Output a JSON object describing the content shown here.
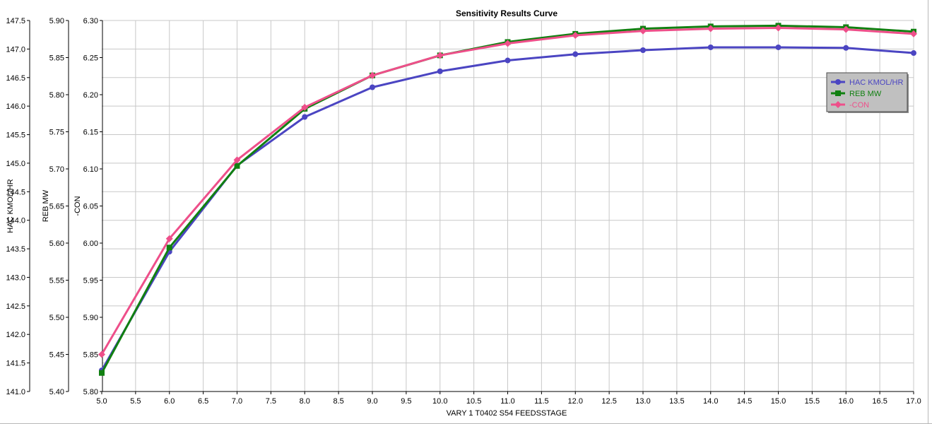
{
  "chart_data": {
    "type": "line",
    "title": "Sensitivity Results Curve",
    "xlabel": "VARY   1 T0402 S54 FEEDSSTAGE",
    "x": [
      5,
      6,
      7,
      8,
      9,
      10,
      11,
      12,
      13,
      14,
      15,
      16,
      17
    ],
    "xlim": [
      5.0,
      17.0
    ],
    "xticks": [
      "5.0",
      "5.5",
      "6.0",
      "6.5",
      "7.0",
      "7.5",
      "8.0",
      "8.5",
      "9.0",
      "9.5",
      "10.0",
      "10.5",
      "11.0",
      "11.5",
      "12.0",
      "12.5",
      "13.0",
      "13.5",
      "14.0",
      "14.5",
      "15.0",
      "15.5",
      "16.0",
      "16.5",
      "17.0"
    ],
    "grid": true,
    "legend": "right",
    "y_axes": [
      {
        "label": "HAC KMOL/HR",
        "range": [
          141.0,
          147.5
        ],
        "ticks": [
          "141.0",
          "141.5",
          "142.0",
          "142.5",
          "143.0",
          "143.5",
          "144.0",
          "144.5",
          "145.0",
          "145.5",
          "146.0",
          "146.5",
          "147.0",
          "147.5"
        ]
      },
      {
        "label": "REB MW",
        "range": [
          5.4,
          5.9
        ],
        "ticks": [
          "5.40",
          "5.45",
          "5.50",
          "5.55",
          "5.60",
          "5.65",
          "5.70",
          "5.75",
          "5.80",
          "5.85",
          "5.90"
        ]
      },
      {
        "label": "-CON",
        "range": [
          5.8,
          6.3
        ],
        "ticks": [
          "5.80",
          "5.85",
          "5.90",
          "5.95",
          "6.00",
          "6.05",
          "6.10",
          "6.15",
          "6.20",
          "6.25",
          "6.30"
        ]
      }
    ],
    "series": [
      {
        "name": "HAC KMOL/HR",
        "axis": 0,
        "color": "#4b45c2",
        "marker": "circle",
        "values": [
          141.37,
          143.45,
          144.96,
          145.81,
          146.33,
          146.61,
          146.8,
          146.91,
          146.98,
          147.03,
          147.03,
          147.02,
          146.93
        ]
      },
      {
        "name": "REB MW",
        "axis": 1,
        "color": "#118011",
        "marker": "square",
        "values": [
          5.425,
          5.594,
          5.704,
          5.781,
          5.826,
          5.853,
          5.871,
          5.882,
          5.889,
          5.892,
          5.893,
          5.891,
          5.885
        ]
      },
      {
        "name": "-CON",
        "axis": 2,
        "color": "#ee4f8a",
        "marker": "diamond",
        "values": [
          5.85,
          6.006,
          6.112,
          6.183,
          6.226,
          6.253,
          6.269,
          6.28,
          6.286,
          6.289,
          6.29,
          6.288,
          6.282
        ]
      }
    ]
  }
}
